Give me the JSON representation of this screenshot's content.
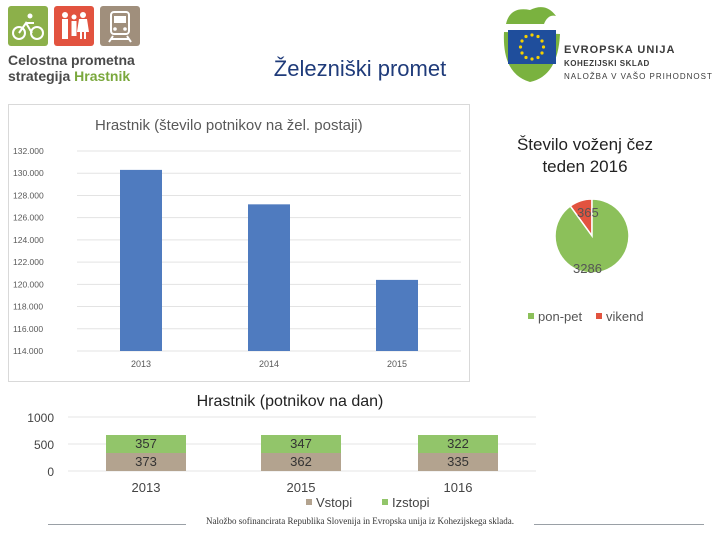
{
  "header": {
    "brand_line1": "Celostna prometna",
    "brand_line2a": "strategija",
    "brand_line2b": "Hrastnik",
    "title": "Železniški promet",
    "eu_line1": "EVROPSKA UNIJA",
    "eu_line2": "KOHEZIJSKI SKLAD",
    "eu_line3": "NALOŽBA V VAŠO PRIHODNOST",
    "icons": [
      "bicycle-icon",
      "pedestrians-icon",
      "train-icon"
    ],
    "colors": {
      "bicycle": "#8cb04a",
      "pedestrians": "#e2533f",
      "train": "#a08f7c",
      "title": "#1f3b7a",
      "eu_blue": "#1f4e9c",
      "eu_star": "#f5d000",
      "leaf": "#7ab23f"
    }
  },
  "chart_data": [
    {
      "type": "bar",
      "title": "Hrastnik (število potnikov na žel. postaji)",
      "categories": [
        "2013",
        "2014",
        "2015"
      ],
      "values": [
        130300,
        127200,
        120400
      ],
      "ylim": [
        114000,
        132000
      ],
      "yticks": [
        "132.000",
        "130.000",
        "128.000",
        "126.000",
        "124.000",
        "122.000",
        "120.000",
        "118.000",
        "116.000",
        "114.000"
      ],
      "color": "#4f7bbf",
      "grid": true
    },
    {
      "type": "pie",
      "title": "Število voženj čez teden 2016",
      "labels": [
        "pon-pet",
        "vikend"
      ],
      "values": [
        3286,
        365
      ],
      "colors": [
        "#8cc05a",
        "#e2533f"
      ],
      "legend": "bottom"
    },
    {
      "type": "bar",
      "stacked": true,
      "title": "Hrastnik (potnikov na dan)",
      "categories": [
        "2013",
        "2015",
        "1016"
      ],
      "series": [
        {
          "name": "Vstopi",
          "values": [
            373,
            362,
            335
          ],
          "color": "#b3a38f"
        },
        {
          "name": "Izstopi",
          "values": [
            357,
            347,
            322
          ],
          "color": "#92c56a"
        }
      ],
      "yticks": [
        "1000",
        "500",
        "0"
      ],
      "ylim": [
        0,
        1000
      ],
      "legend": "bottom"
    }
  ],
  "footer": {
    "text": "Naložbo sofinancirata Republika Slovenija in Evropska unija iz Kohezijskega sklada."
  }
}
